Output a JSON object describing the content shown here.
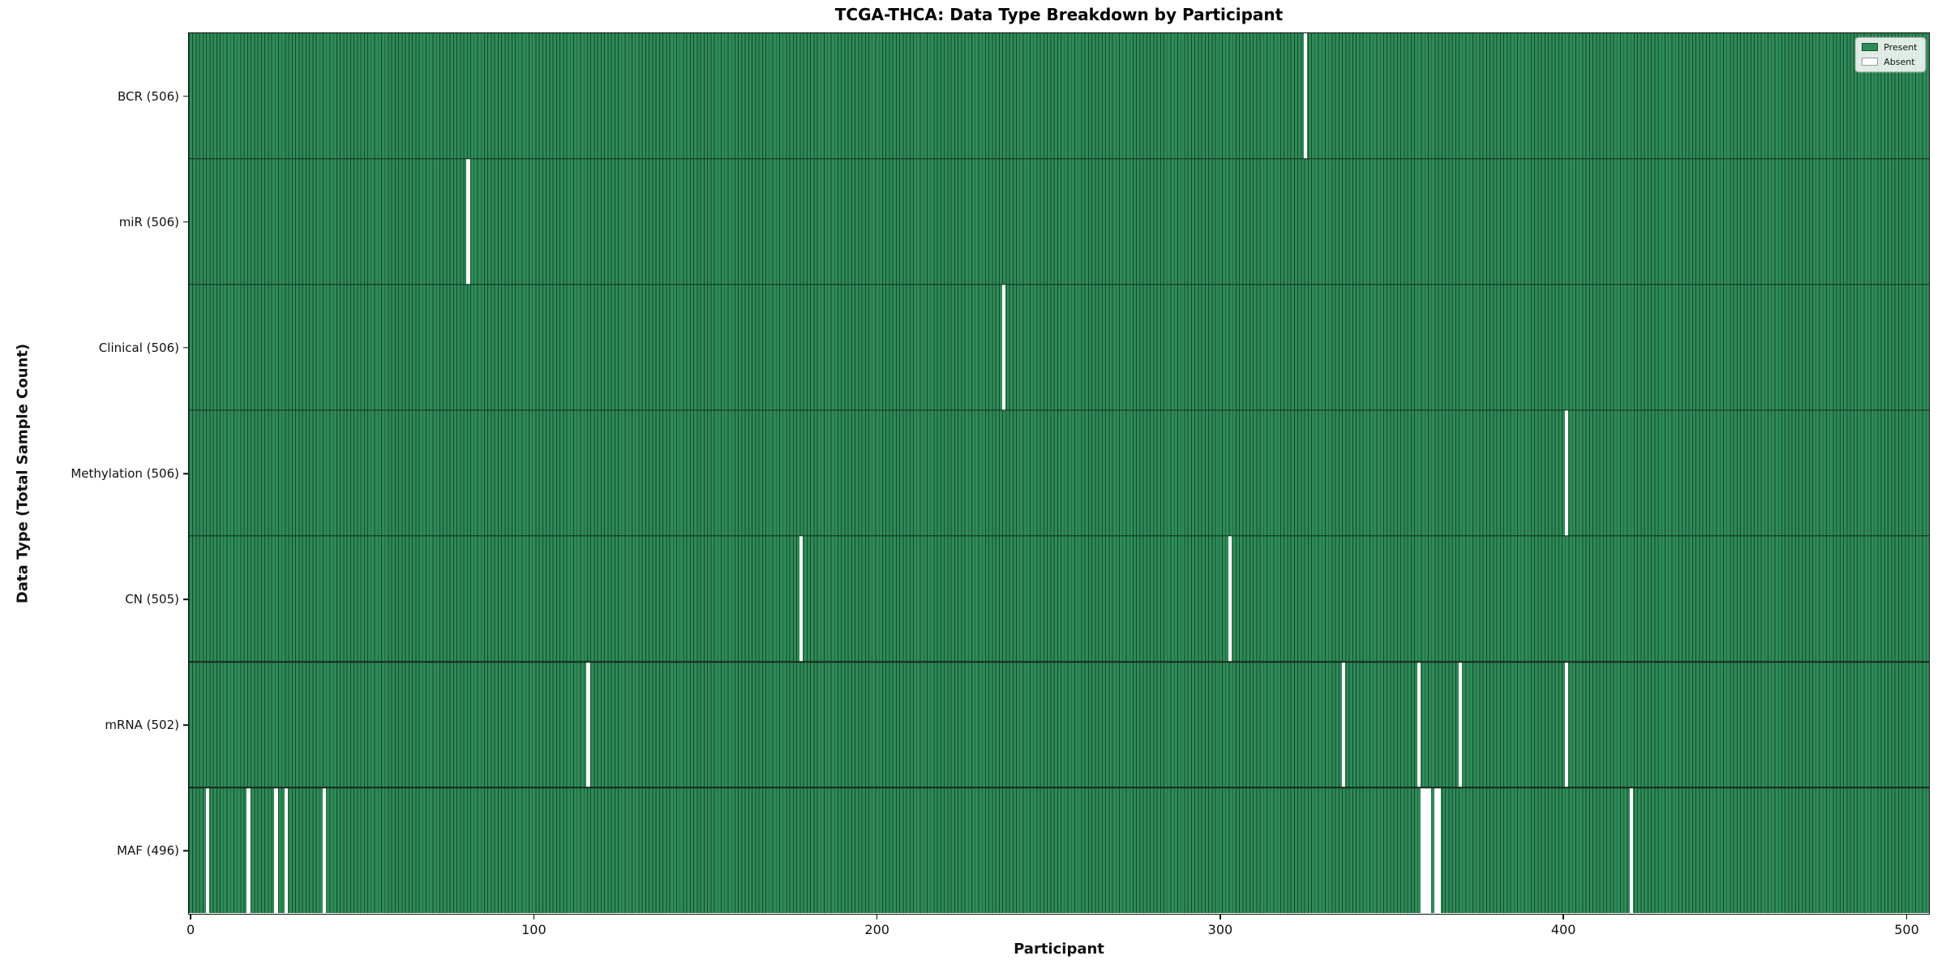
{
  "figure": {
    "title": "TCGA-THCA: Data Type Breakdown by Participant"
  },
  "chart_data": {
    "type": "heatmap",
    "title": "TCGA-THCA: Data Type Breakdown by Participant",
    "xlabel": "Participant",
    "ylabel": "Data Type (Total Sample Count)",
    "x_ticks": [
      0,
      100,
      200,
      300,
      400,
      500
    ],
    "xlim": [
      -0.5,
      506.5
    ],
    "n_participants": 507,
    "grid": false,
    "legend": {
      "position": "upper right",
      "entries": [
        {
          "label": "Present",
          "color": "#2e8b57"
        },
        {
          "label": "Absent",
          "color": "#ffffff"
        }
      ]
    },
    "colors": {
      "present_fill": "#2e8b57",
      "bar_edge": "#15482e",
      "absent_fill": "#ffffff",
      "axis": "#111111",
      "row_separator": "#142a1d"
    },
    "rows": [
      {
        "data_type": "BCR",
        "total_samples": 506,
        "label": "BCR (506)",
        "absent_participants": [
          325
        ]
      },
      {
        "data_type": "miR",
        "total_samples": 506,
        "label": "miR (506)",
        "absent_participants": [
          81
        ]
      },
      {
        "data_type": "Clinical",
        "total_samples": 506,
        "label": "Clinical (506)",
        "absent_participants": [
          237
        ]
      },
      {
        "data_type": "Methylation",
        "total_samples": 506,
        "label": "Methylation (506)",
        "absent_participants": [
          401
        ]
      },
      {
        "data_type": "CN",
        "total_samples": 505,
        "label": "CN (505)",
        "absent_participants": [
          178,
          303
        ]
      },
      {
        "data_type": "mRNA",
        "total_samples": 502,
        "label": "mRNA (502)",
        "absent_participants": [
          116,
          336,
          358,
          370,
          401
        ]
      },
      {
        "data_type": "MAF",
        "total_samples": 496,
        "label": "MAF (496)",
        "absent_participants": [
          5,
          17,
          25,
          28,
          39,
          359,
          360,
          361,
          363,
          364,
          420
        ]
      }
    ]
  }
}
